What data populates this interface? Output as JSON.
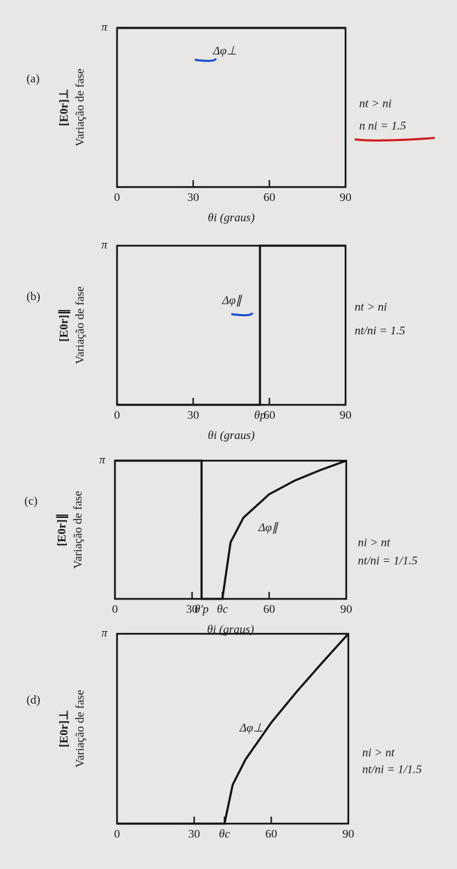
{
  "chart_data": [
    {
      "type": "line",
      "title": "(a)",
      "ylabel": "Variação de fase",
      "field_label": "[E0r]⊥",
      "xlabel": "θi (graus)",
      "x": [
        0,
        90
      ],
      "values": [
        3.1416,
        3.1416
      ],
      "xlim": [
        0,
        90
      ],
      "ylim": [
        0,
        3.1416
      ],
      "xticks": [
        0,
        30,
        60,
        90
      ],
      "yticks": [
        {
          "value": 3.1416,
          "label": "π"
        }
      ],
      "annotations": [
        "Δφ⊥",
        "nt > ni",
        "n  ni = 1.5"
      ],
      "color": "#111111"
    },
    {
      "type": "line",
      "title": "(b)",
      "ylabel": "Variação de fase",
      "field_label": "[E0r]∥",
      "xlabel": "θi (graus)",
      "x": [
        0,
        56.3,
        56.3,
        90
      ],
      "values": [
        0,
        0,
        3.1416,
        3.1416
      ],
      "xlim": [
        0,
        90
      ],
      "ylim": [
        0,
        3.1416
      ],
      "xticks": [
        0,
        30,
        {
          "value": 56.3,
          "label": "θp"
        },
        60,
        90
      ],
      "yticks": [
        {
          "value": 3.1416,
          "label": "π"
        }
      ],
      "annotations": [
        "Δφ∥",
        "nt > ni",
        "nt/ni = 1.5"
      ],
      "color": "#111111"
    },
    {
      "type": "line",
      "title": "(c)",
      "ylabel": "Variação de fase",
      "field_label": "[E0r]∥",
      "xlabel": "θi (graus)",
      "x": [
        0,
        33.7,
        33.7,
        41.8,
        45,
        50,
        60,
        70,
        80,
        90
      ],
      "values": [
        3.1416,
        3.1416,
        0,
        0,
        1.287,
        1.846,
        2.377,
        2.69,
        2.929,
        3.1416
      ],
      "xlim": [
        0,
        90
      ],
      "ylim": [
        0,
        3.1416
      ],
      "xticks": [
        0,
        30,
        {
          "value": 33.7,
          "label": "θ'p"
        },
        {
          "value": 41.8,
          "label": "θc"
        },
        60,
        90
      ],
      "yticks": [
        {
          "value": 3.1416,
          "label": "π"
        }
      ],
      "annotations": [
        "Δφ∥",
        "ni > nt",
        "nt/ni = 1/1.5"
      ],
      "color": "#111111"
    },
    {
      "type": "line",
      "title": "(d)",
      "ylabel": "Variação de fase",
      "field_label": "[E0r]⊥",
      "x": [
        0,
        41.8,
        45,
        50,
        60,
        70,
        80,
        90
      ],
      "values": [
        0,
        0,
        0.643,
        1.062,
        1.671,
        2.188,
        2.671,
        3.1416
      ],
      "xlim": [
        0,
        90
      ],
      "ylim": [
        0,
        3.1416
      ],
      "xticks": [
        0,
        30,
        {
          "value": 41.8,
          "label": "θc"
        },
        60,
        90
      ],
      "yticks": [
        {
          "value": 3.1416,
          "label": "π"
        }
      ],
      "annotations": [
        "Δφ⊥",
        "ni > nt",
        "nt/ni = 1/1.5"
      ],
      "color": "#111111"
    }
  ]
}
